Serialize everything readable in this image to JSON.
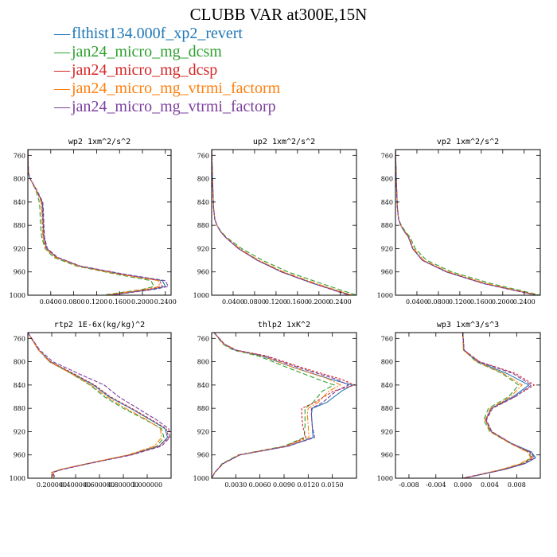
{
  "title": "CLUBB VAR at300E,15N",
  "legend": [
    {
      "label": "flthist134.000f_xp2_revert",
      "color": "#1f77b4"
    },
    {
      "label": "jan24_micro_mg_dcsm",
      "color": "#2ca02c"
    },
    {
      "label": "jan24_micro_mg_dcsp",
      "color": "#d62728"
    },
    {
      "label": "jan24_micro_mg_vtrmi_factorm",
      "color": "#ff7f0e"
    },
    {
      "label": "jan24_micro_mg_vtrmi_factorp",
      "color": "#7b3f9e"
    }
  ],
  "chart_data": [
    {
      "type": "line",
      "title": "wp2  1xm^2/s^2",
      "xlim": [
        0.0,
        0.25
      ],
      "ylim": [
        1000,
        750
      ],
      "xticks": [
        0.04,
        0.08,
        0.12,
        0.16,
        0.2,
        0.24
      ],
      "xtick_labels": [
        "0.0400",
        "0.0800",
        "0.1200",
        "0.1600",
        "0.2000",
        "0.2400"
      ],
      "yticks": [
        760,
        800,
        840,
        880,
        920,
        960,
        1000
      ],
      "y": [
        750,
        790,
        800,
        820,
        840,
        850,
        880,
        900,
        920,
        935,
        950,
        965,
        975,
        985,
        990,
        1000
      ],
      "series": [
        {
          "x": [
            0.0,
            0.001,
            0.004,
            0.015,
            0.025,
            0.026,
            0.027,
            0.028,
            0.033,
            0.05,
            0.09,
            0.17,
            0.235,
            0.24,
            0.215,
            0.14
          ]
        },
        {
          "x": [
            0.0,
            0.001,
            0.004,
            0.014,
            0.02,
            0.021,
            0.022,
            0.024,
            0.03,
            0.045,
            0.085,
            0.16,
            0.215,
            0.22,
            0.2,
            0.13
          ]
        },
        {
          "x": [
            0.0,
            0.001,
            0.004,
            0.015,
            0.024,
            0.025,
            0.026,
            0.027,
            0.032,
            0.05,
            0.09,
            0.17,
            0.23,
            0.235,
            0.21,
            0.14
          ]
        },
        {
          "x": [
            0.0,
            0.001,
            0.004,
            0.015,
            0.023,
            0.024,
            0.025,
            0.026,
            0.031,
            0.048,
            0.088,
            0.165,
            0.228,
            0.23,
            0.205,
            0.135
          ]
        },
        {
          "x": [
            0.0,
            0.001,
            0.004,
            0.016,
            0.026,
            0.027,
            0.028,
            0.029,
            0.034,
            0.052,
            0.092,
            0.175,
            0.24,
            0.245,
            0.22,
            0.145
          ]
        }
      ]
    },
    {
      "type": "line",
      "title": "up2  1xm^2/s^2",
      "xlim": [
        0.0,
        0.27
      ],
      "ylim": [
        1000,
        750
      ],
      "xticks": [
        0.04,
        0.08,
        0.12,
        0.16,
        0.2,
        0.24
      ],
      "xtick_labels": [
        "0.0400",
        "0.0800",
        "0.1200",
        "0.1600",
        "0.2000",
        "0.2400"
      ],
      "yticks": [
        760,
        800,
        840,
        880,
        920,
        960,
        1000
      ],
      "y": [
        750,
        800,
        850,
        870,
        880,
        890,
        900,
        920,
        940,
        960,
        980,
        1000
      ],
      "series": [
        {
          "x": [
            0.0,
            0.0015,
            0.0035,
            0.006,
            0.01,
            0.016,
            0.025,
            0.05,
            0.085,
            0.13,
            0.19,
            0.26
          ]
        },
        {
          "x": [
            0.0,
            0.0015,
            0.0035,
            0.006,
            0.01,
            0.017,
            0.027,
            0.056,
            0.095,
            0.142,
            0.205,
            0.27
          ]
        },
        {
          "x": [
            0.0,
            0.0015,
            0.0035,
            0.006,
            0.01,
            0.016,
            0.025,
            0.05,
            0.086,
            0.131,
            0.19,
            0.258
          ]
        },
        {
          "x": [
            0.0,
            0.0015,
            0.0035,
            0.006,
            0.01,
            0.016,
            0.026,
            0.052,
            0.088,
            0.134,
            0.195,
            0.262
          ]
        },
        {
          "x": [
            0.0,
            0.0015,
            0.0035,
            0.006,
            0.01,
            0.016,
            0.025,
            0.05,
            0.085,
            0.13,
            0.19,
            0.256
          ]
        }
      ]
    },
    {
      "type": "line",
      "title": "vp2  1xm^2/s^2",
      "xlim": [
        0.0,
        0.27
      ],
      "ylim": [
        1000,
        750
      ],
      "xticks": [
        0.04,
        0.08,
        0.12,
        0.16,
        0.2,
        0.24
      ],
      "xtick_labels": [
        "0.0400",
        "0.0800",
        "0.1200",
        "0.1600",
        "0.2000",
        "0.2400"
      ],
      "yticks": [
        760,
        800,
        840,
        880,
        920,
        960,
        1000
      ],
      "y": [
        750,
        800,
        850,
        870,
        880,
        890,
        900,
        920,
        940,
        960,
        980,
        1000
      ],
      "series": [
        {
          "x": [
            0.0,
            0.0015,
            0.0035,
            0.006,
            0.01,
            0.016,
            0.024,
            0.032,
            0.05,
            0.095,
            0.165,
            0.265
          ]
        },
        {
          "x": [
            0.0,
            0.0015,
            0.0035,
            0.006,
            0.011,
            0.018,
            0.027,
            0.037,
            0.058,
            0.105,
            0.178,
            0.27
          ]
        },
        {
          "x": [
            0.0,
            0.0015,
            0.0035,
            0.006,
            0.01,
            0.016,
            0.024,
            0.032,
            0.05,
            0.096,
            0.166,
            0.264
          ]
        },
        {
          "x": [
            0.0,
            0.0015,
            0.0035,
            0.006,
            0.01,
            0.017,
            0.025,
            0.034,
            0.053,
            0.099,
            0.17,
            0.266
          ]
        },
        {
          "x": [
            0.0,
            0.0015,
            0.0035,
            0.006,
            0.01,
            0.016,
            0.024,
            0.032,
            0.05,
            0.095,
            0.164,
            0.262
          ]
        }
      ]
    },
    {
      "type": "line",
      "title": "rtp2  1E-6x(kg/kg)^2",
      "xlim": [
        0.0,
        1.2
      ],
      "ylim": [
        1000,
        750
      ],
      "xticks": [
        0.2,
        0.4,
        0.6,
        0.8,
        1.0
      ],
      "xtick_labels": [
        "0.200000",
        "0.400000",
        "0.600000",
        "0.800000",
        "1.000000"
      ],
      "yticks": [
        760,
        800,
        840,
        880,
        920,
        960,
        1000
      ],
      "y": [
        750,
        780,
        800,
        820,
        840,
        860,
        880,
        900,
        915,
        930,
        945,
        960,
        975,
        985,
        990,
        1000
      ],
      "series": [
        {
          "x": [
            0.0,
            0.09,
            0.19,
            0.37,
            0.55,
            0.68,
            0.86,
            1.03,
            1.15,
            1.17,
            1.1,
            0.85,
            0.5,
            0.28,
            0.2,
            0.22
          ]
        },
        {
          "x": [
            0.0,
            0.09,
            0.18,
            0.36,
            0.52,
            0.64,
            0.8,
            0.99,
            1.12,
            1.14,
            1.08,
            0.85,
            0.5,
            0.28,
            0.2,
            0.22
          ]
        },
        {
          "x": [
            0.0,
            0.09,
            0.19,
            0.38,
            0.56,
            0.69,
            0.87,
            1.04,
            1.16,
            1.18,
            1.1,
            0.86,
            0.5,
            0.28,
            0.2,
            0.22
          ]
        },
        {
          "x": [
            0.0,
            0.09,
            0.18,
            0.36,
            0.53,
            0.66,
            0.82,
            1.0,
            1.11,
            1.12,
            1.06,
            0.84,
            0.49,
            0.27,
            0.2,
            0.22
          ]
        },
        {
          "x": [
            0.0,
            0.1,
            0.21,
            0.42,
            0.64,
            0.76,
            0.92,
            1.08,
            1.18,
            1.19,
            1.12,
            0.87,
            0.51,
            0.29,
            0.21,
            0.23
          ]
        }
      ]
    },
    {
      "type": "line",
      "title": "thlp2  1xK^2",
      "xlim": [
        0.0,
        0.018
      ],
      "ylim": [
        1000,
        750
      ],
      "xticks": [
        0.003,
        0.006,
        0.009,
        0.012,
        0.015
      ],
      "xtick_labels": [
        "0.0030",
        "0.0060",
        "0.0090",
        "0.0120",
        "0.0150"
      ],
      "yticks": [
        760,
        800,
        840,
        880,
        920,
        960,
        1000
      ],
      "y": [
        750,
        770,
        780,
        790,
        810,
        830,
        840,
        850,
        870,
        880,
        890,
        910,
        930,
        945,
        960,
        975,
        990,
        1000
      ],
      "series": [
        {
          "x": [
            0.0003,
            0.0015,
            0.0029,
            0.0062,
            0.0102,
            0.0148,
            0.0175,
            0.0162,
            0.0143,
            0.0125,
            0.0124,
            0.0125,
            0.0126,
            0.0095,
            0.0035,
            0.0014,
            0.0004,
            0.0
          ]
        },
        {
          "x": [
            0.0003,
            0.0014,
            0.0027,
            0.0058,
            0.0094,
            0.0132,
            0.0152,
            0.0138,
            0.0126,
            0.0116,
            0.0116,
            0.0116,
            0.0115,
            0.009,
            0.0033,
            0.0013,
            0.0004,
            0.0
          ]
        },
        {
          "x": [
            0.0003,
            0.0016,
            0.0031,
            0.0068,
            0.0112,
            0.0161,
            0.0178,
            0.0152,
            0.0128,
            0.0112,
            0.0112,
            0.0113,
            0.0117,
            0.0092,
            0.0035,
            0.0014,
            0.0004,
            0.0
          ]
        },
        {
          "x": [
            0.0003,
            0.0015,
            0.0029,
            0.0063,
            0.0102,
            0.0146,
            0.016,
            0.0146,
            0.0132,
            0.012,
            0.0119,
            0.012,
            0.0121,
            0.0093,
            0.0034,
            0.0014,
            0.0004,
            0.0
          ]
        },
        {
          "x": [
            0.0003,
            0.0016,
            0.003,
            0.0066,
            0.0108,
            0.0155,
            0.017,
            0.0155,
            0.0138,
            0.0124,
            0.0124,
            0.0125,
            0.0128,
            0.0095,
            0.0035,
            0.0014,
            0.0004,
            0.0
          ]
        }
      ]
    },
    {
      "type": "line",
      "title": "wp3  1xm^3/s^3",
      "xlim": [
        -0.01,
        0.0115
      ],
      "ylim": [
        1000,
        750
      ],
      "xticks": [
        -0.008,
        -0.004,
        0.0,
        0.004,
        0.008
      ],
      "xtick_labels": [
        "-0.008",
        "-0.004",
        "0.000",
        "0.004",
        "0.008"
      ],
      "yticks": [
        760,
        800,
        840,
        880,
        920,
        960,
        1000
      ],
      "y": [
        750,
        780,
        800,
        820,
        840,
        860,
        880,
        900,
        920,
        940,
        955,
        965,
        975,
        985,
        995,
        1000
      ],
      "series": [
        {
          "x": [
            0.0,
            0.0001,
            0.0022,
            0.0065,
            0.0098,
            0.0075,
            0.0042,
            0.0034,
            0.0042,
            0.0072,
            0.0102,
            0.0108,
            0.0092,
            0.0062,
            0.0022,
            0.0
          ]
        },
        {
          "x": [
            0.0,
            0.0001,
            0.002,
            0.0058,
            0.0083,
            0.0068,
            0.0038,
            0.0031,
            0.004,
            0.007,
            0.0097,
            0.0102,
            0.0087,
            0.0058,
            0.002,
            0.0
          ]
        },
        {
          "x": [
            0.0,
            0.0002,
            0.0025,
            0.0078,
            0.0106,
            0.0077,
            0.0043,
            0.0034,
            0.0042,
            0.0071,
            0.0099,
            0.0104,
            0.009,
            0.006,
            0.0021,
            0.0
          ]
        },
        {
          "x": [
            0.0,
            0.0001,
            0.0021,
            0.006,
            0.0088,
            0.0071,
            0.0041,
            0.0033,
            0.0041,
            0.007,
            0.0096,
            0.0101,
            0.0085,
            0.0057,
            0.002,
            0.0
          ]
        },
        {
          "x": [
            0.0,
            0.0002,
            0.0024,
            0.0074,
            0.0102,
            0.0078,
            0.0044,
            0.0035,
            0.0043,
            0.0072,
            0.01,
            0.0107,
            0.0091,
            0.0061,
            0.0021,
            0.0
          ]
        }
      ]
    }
  ]
}
